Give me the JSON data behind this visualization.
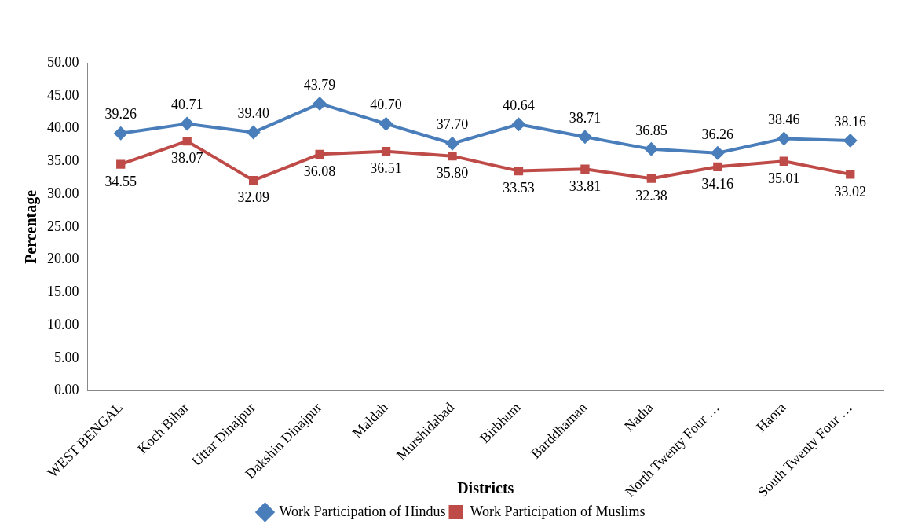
{
  "chart_data": {
    "type": "line",
    "xlabel": "Districts",
    "ylabel": "Percentage",
    "categories": [
      "WEST BENGAL",
      "Koch Bihar",
      "Uttar Dinajpur",
      "Dakshin Dinajpur",
      "Maldah",
      "Murshidabad",
      "Birbhum",
      "Barddhaman",
      "Nadia",
      "North Twenty Four …",
      "Haora",
      "South Twenty Four …"
    ],
    "series": [
      {
        "name": "Work Participation of Hindus",
        "color": "#4a7ebb",
        "marker": "diamond",
        "values": [
          39.26,
          40.71,
          39.4,
          43.79,
          40.7,
          37.7,
          40.64,
          38.71,
          36.85,
          36.26,
          38.46,
          38.16
        ],
        "value_labels": [
          "39.26",
          "40.71",
          "39.40",
          "43.79",
          "40.70",
          "37.70",
          "40.64",
          "38.71",
          "36.85",
          "36.26",
          "38.46",
          "38.16"
        ]
      },
      {
        "name": "Work Participation of Muslims",
        "color": "#be4b48",
        "marker": "square",
        "values": [
          34.55,
          38.07,
          32.09,
          36.08,
          36.51,
          35.8,
          33.53,
          33.81,
          32.38,
          34.16,
          35.01,
          33.02
        ],
        "value_labels": [
          "34.55",
          "38.07",
          "32.09",
          "36.08",
          "36.51",
          "35.80",
          "33.53",
          "33.81",
          "32.38",
          "34.16",
          "35.01",
          "33.02"
        ]
      }
    ],
    "ylim": [
      0,
      50
    ],
    "yticks": [
      {
        "value": 0,
        "label": "0.00"
      },
      {
        "value": 5,
        "label": "5.00"
      },
      {
        "value": 10,
        "label": "10.00"
      },
      {
        "value": 15,
        "label": "15.00"
      },
      {
        "value": 20,
        "label": "20.00"
      },
      {
        "value": 25,
        "label": "25.00"
      },
      {
        "value": 30,
        "label": "30.00"
      },
      {
        "value": 35,
        "label": "35.00"
      },
      {
        "value": 40,
        "label": "40.00"
      },
      {
        "value": 45,
        "label": "45.00"
      },
      {
        "value": 50,
        "label": "50.00"
      }
    ],
    "grid": false,
    "legend": "bottom",
    "line_style": "solid"
  }
}
